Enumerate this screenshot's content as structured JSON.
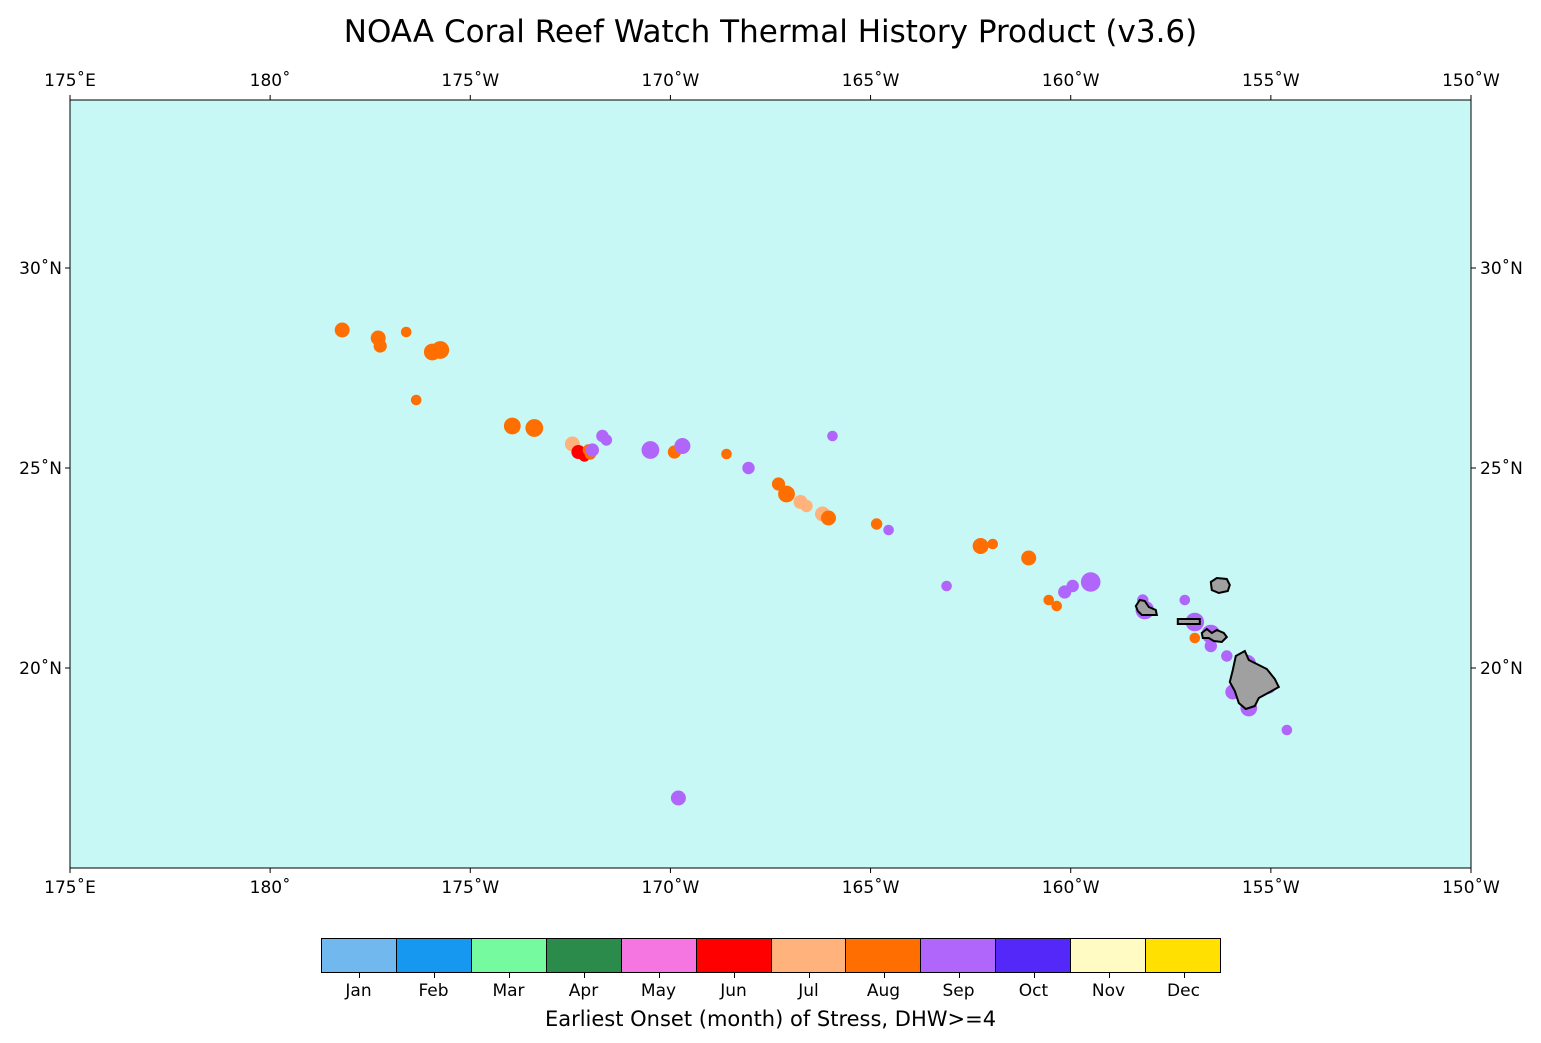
{
  "title": "NOAA Coral Reef Watch Thermal History Product (v3.6)",
  "map": {
    "ocean_color": "#C8F8F5",
    "land_color": "#A0A0A0",
    "lon_range": [
      175,
      210
    ],
    "lat_range": [
      15,
      34.2
    ],
    "x_ticks": [
      {
        "lon": 175,
        "label": "175˚E"
      },
      {
        "lon": 180,
        "label": "180˚"
      },
      {
        "lon": 185,
        "label": "175˚W"
      },
      {
        "lon": 190,
        "label": "170˚W"
      },
      {
        "lon": 195,
        "label": "165˚W"
      },
      {
        "lon": 200,
        "label": "160˚W"
      },
      {
        "lon": 205,
        "label": "155˚W"
      },
      {
        "lon": 210,
        "label": "150˚W"
      }
    ],
    "y_ticks": [
      {
        "lat": 30,
        "label": "30˚N"
      },
      {
        "lat": 25,
        "label": "25˚N"
      },
      {
        "lat": 20,
        "label": "20˚N"
      }
    ],
    "islands": [
      {
        "lon": 203.75,
        "lat": 22.05,
        "name": "Kauai"
      },
      {
        "lon": 201.9,
        "lat": 21.5,
        "name": "Oahu"
      },
      {
        "lon": 202.95,
        "lat": 21.15,
        "name": "Molokai"
      },
      {
        "lon": 203.6,
        "lat": 20.8,
        "name": "Maui"
      },
      {
        "lon": 204.55,
        "lat": 19.65,
        "name": "Hawaii"
      }
    ],
    "stress_points": [
      {
        "lon": 181.8,
        "lat": 28.45,
        "month": "Aug",
        "size": 1.0
      },
      {
        "lon": 182.7,
        "lat": 28.25,
        "month": "Aug",
        "size": 1.0
      },
      {
        "lon": 182.75,
        "lat": 28.05,
        "month": "Aug",
        "size": 0.8
      },
      {
        "lon": 183.4,
        "lat": 28.4,
        "month": "Aug",
        "size": 0.5
      },
      {
        "lon": 184.05,
        "lat": 27.9,
        "month": "Aug",
        "size": 1.2
      },
      {
        "lon": 184.25,
        "lat": 27.95,
        "month": "Aug",
        "size": 1.3
      },
      {
        "lon": 183.65,
        "lat": 26.7,
        "month": "Aug",
        "size": 0.5
      },
      {
        "lon": 186.05,
        "lat": 26.05,
        "month": "Aug",
        "size": 1.2
      },
      {
        "lon": 186.6,
        "lat": 26.0,
        "month": "Aug",
        "size": 1.3
      },
      {
        "lon": 187.55,
        "lat": 25.6,
        "month": "Jul",
        "size": 1.0
      },
      {
        "lon": 187.7,
        "lat": 25.4,
        "month": "Jun",
        "size": 0.9
      },
      {
        "lon": 187.85,
        "lat": 25.3,
        "month": "Jun",
        "size": 0.6
      },
      {
        "lon": 187.95,
        "lat": 25.45,
        "month": "Aug",
        "size": 0.6
      },
      {
        "lon": 188.0,
        "lat": 25.35,
        "month": "Aug",
        "size": 0.6
      },
      {
        "lon": 188.05,
        "lat": 25.45,
        "month": "Sep",
        "size": 0.8
      },
      {
        "lon": 188.3,
        "lat": 25.8,
        "month": "Sep",
        "size": 0.7
      },
      {
        "lon": 188.4,
        "lat": 25.7,
        "month": "Sep",
        "size": 0.6
      },
      {
        "lon": 189.5,
        "lat": 25.45,
        "month": "Sep",
        "size": 1.3
      },
      {
        "lon": 190.1,
        "lat": 25.4,
        "month": "Aug",
        "size": 0.8
      },
      {
        "lon": 190.3,
        "lat": 25.55,
        "month": "Sep",
        "size": 1.1
      },
      {
        "lon": 191.4,
        "lat": 25.35,
        "month": "Aug",
        "size": 0.5
      },
      {
        "lon": 191.95,
        "lat": 25.0,
        "month": "Sep",
        "size": 0.7
      },
      {
        "lon": 192.7,
        "lat": 24.6,
        "month": "Aug",
        "size": 0.8
      },
      {
        "lon": 192.9,
        "lat": 24.35,
        "month": "Aug",
        "size": 1.2
      },
      {
        "lon": 193.25,
        "lat": 24.15,
        "month": "Jul",
        "size": 0.9
      },
      {
        "lon": 193.4,
        "lat": 24.05,
        "month": "Jul",
        "size": 0.7
      },
      {
        "lon": 193.8,
        "lat": 23.85,
        "month": "Jul",
        "size": 1.0
      },
      {
        "lon": 193.95,
        "lat": 23.75,
        "month": "Aug",
        "size": 1.0
      },
      {
        "lon": 194.05,
        "lat": 25.8,
        "month": "Sep",
        "size": 0.5
      },
      {
        "lon": 195.15,
        "lat": 23.6,
        "month": "Aug",
        "size": 0.6
      },
      {
        "lon": 195.45,
        "lat": 23.45,
        "month": "Sep",
        "size": 0.5
      },
      {
        "lon": 196.9,
        "lat": 22.05,
        "month": "Sep",
        "size": 0.5
      },
      {
        "lon": 197.75,
        "lat": 23.05,
        "month": "Aug",
        "size": 1.1
      },
      {
        "lon": 198.05,
        "lat": 23.1,
        "month": "Aug",
        "size": 0.5
      },
      {
        "lon": 198.95,
        "lat": 22.75,
        "month": "Aug",
        "size": 1.0
      },
      {
        "lon": 199.45,
        "lat": 21.7,
        "month": "Aug",
        "size": 0.5
      },
      {
        "lon": 199.65,
        "lat": 21.55,
        "month": "Aug",
        "size": 0.5
      },
      {
        "lon": 199.85,
        "lat": 21.9,
        "month": "Sep",
        "size": 0.8
      },
      {
        "lon": 200.05,
        "lat": 22.05,
        "month": "Sep",
        "size": 0.7
      },
      {
        "lon": 200.5,
        "lat": 22.15,
        "month": "Sep",
        "size": 1.5
      },
      {
        "lon": 201.8,
        "lat": 21.7,
        "month": "Sep",
        "size": 0.6
      },
      {
        "lon": 201.85,
        "lat": 21.45,
        "month": "Sep",
        "size": 1.4
      },
      {
        "lon": 202.85,
        "lat": 21.7,
        "month": "Sep",
        "size": 0.5
      },
      {
        "lon": 203.1,
        "lat": 21.15,
        "month": "Sep",
        "size": 1.4
      },
      {
        "lon": 203.5,
        "lat": 20.85,
        "month": "Sep",
        "size": 1.4
      },
      {
        "lon": 203.1,
        "lat": 20.75,
        "month": "Aug",
        "size": 0.5
      },
      {
        "lon": 203.5,
        "lat": 20.55,
        "month": "Sep",
        "size": 0.7
      },
      {
        "lon": 203.9,
        "lat": 20.3,
        "month": "Sep",
        "size": 0.6
      },
      {
        "lon": 204.4,
        "lat": 20.1,
        "month": "Sep",
        "size": 1.4
      },
      {
        "lon": 204.9,
        "lat": 19.6,
        "month": "Sep",
        "size": 1.6
      },
      {
        "lon": 204.45,
        "lat": 19.0,
        "month": "Sep",
        "size": 1.2
      },
      {
        "lon": 204.05,
        "lat": 19.4,
        "month": "Sep",
        "size": 1.0
      },
      {
        "lon": 205.4,
        "lat": 18.45,
        "month": "Sep",
        "size": 0.5
      },
      {
        "lon": 190.2,
        "lat": 16.75,
        "month": "Sep",
        "size": 1.0
      }
    ]
  },
  "legend": {
    "months": [
      {
        "label": "Jan",
        "color": "#70B8EE"
      },
      {
        "label": "Feb",
        "color": "#1698F0"
      },
      {
        "label": "Mar",
        "color": "#75FAA0"
      },
      {
        "label": "Apr",
        "color": "#2B8B4A"
      },
      {
        "label": "May",
        "color": "#F576E0"
      },
      {
        "label": "Jun",
        "color": "#FF0000"
      },
      {
        "label": "Jul",
        "color": "#FFB27B"
      },
      {
        "label": "Aug",
        "color": "#FF6E00"
      },
      {
        "label": "Sep",
        "color": "#B066FA"
      },
      {
        "label": "Oct",
        "color": "#5528FA"
      },
      {
        "label": "Nov",
        "color": "#FFFBC2"
      },
      {
        "label": "Dec",
        "color": "#FFE000"
      }
    ],
    "title": "Earliest Onset (month) of Stress, DHW>=4"
  }
}
